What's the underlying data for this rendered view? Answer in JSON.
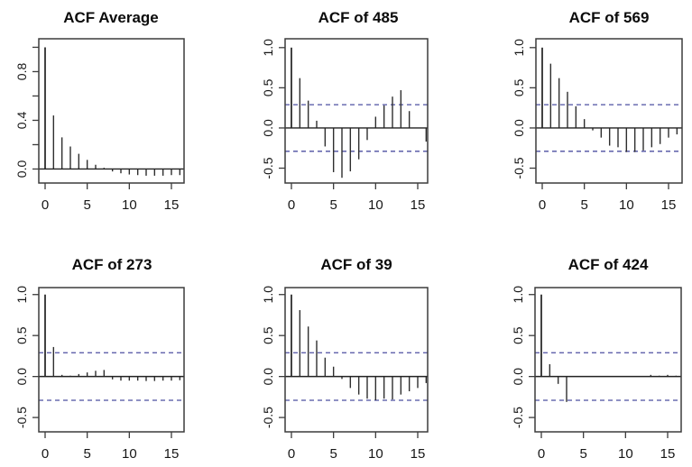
{
  "figure": {
    "description": "Grid of six autocorrelation (ACF) stem plots, R-style, 2 rows x 3 columns",
    "background": "#ffffff"
  },
  "colors": {
    "stem": "#2e2e2e",
    "axis": "#3c3c3c",
    "zero_line": "#222222",
    "conf_band": "#4c4fa1",
    "text": "#161616",
    "title": "#0b0b0b"
  },
  "chart_data": [
    {
      "type": "bar",
      "subtype": "acf-stem",
      "title": "ACF Average",
      "xlabel": "",
      "ylabel": "",
      "x": [
        0,
        1,
        2,
        3,
        4,
        5,
        6,
        7,
        8,
        9,
        10,
        11,
        12,
        13,
        14,
        15,
        16
      ],
      "values": [
        1.0,
        0.44,
        0.26,
        0.185,
        0.125,
        0.075,
        0.035,
        0.01,
        -0.02,
        -0.035,
        -0.045,
        -0.05,
        -0.055,
        -0.055,
        -0.055,
        -0.05,
        -0.05
      ],
      "ylim": [
        -0.115,
        1.07
      ],
      "ytick_values": [
        0.0,
        0.2,
        0.4,
        0.6,
        0.8,
        1.0
      ],
      "ytick_labels": [
        "0.0",
        "",
        "0.4",
        "",
        "0.8",
        ""
      ],
      "xtick_values": [
        0,
        5,
        10,
        15
      ],
      "xtick_labels": [
        "0",
        "5",
        "10",
        "15"
      ],
      "conf_band": null,
      "grid": false,
      "legend": null
    },
    {
      "type": "bar",
      "subtype": "acf-stem",
      "title": "ACF of 485",
      "xlabel": "",
      "ylabel": "",
      "x": [
        0,
        1,
        2,
        3,
        4,
        5,
        6,
        7,
        8,
        9,
        10,
        11,
        12,
        13,
        14,
        15,
        16
      ],
      "values": [
        1.0,
        0.62,
        0.34,
        0.09,
        -0.23,
        -0.55,
        -0.62,
        -0.54,
        -0.39,
        -0.15,
        0.14,
        0.28,
        0.39,
        0.47,
        0.21,
        0.0,
        -0.17
      ],
      "ylim": [
        -0.685,
        1.11
      ],
      "ytick_values": [
        -0.5,
        0.0,
        0.5,
        1.0
      ],
      "ytick_labels": [
        "-0.5",
        "0.0",
        "0.5",
        "1.0"
      ],
      "xtick_values": [
        0,
        5,
        10,
        15
      ],
      "xtick_labels": [
        "0",
        "5",
        "10",
        "15"
      ],
      "conf_band": 0.29,
      "grid": false,
      "legend": null
    },
    {
      "type": "bar",
      "subtype": "acf-stem",
      "title": "ACF of 569",
      "xlabel": "",
      "ylabel": "",
      "x": [
        0,
        1,
        2,
        3,
        4,
        5,
        6,
        7,
        8,
        9,
        10,
        11,
        12,
        13,
        14,
        15,
        16
      ],
      "values": [
        1.0,
        0.8,
        0.62,
        0.45,
        0.27,
        0.11,
        -0.03,
        -0.12,
        -0.22,
        -0.24,
        -0.3,
        -0.3,
        -0.28,
        -0.24,
        -0.2,
        -0.12,
        -0.08
      ],
      "ylim": [
        -0.685,
        1.11
      ],
      "ytick_values": [
        -0.5,
        0.0,
        0.5,
        1.0
      ],
      "ytick_labels": [
        "-0.5",
        "0.0",
        "0.5",
        "1.0"
      ],
      "xtick_values": [
        0,
        5,
        10,
        15
      ],
      "xtick_labels": [
        "0",
        "5",
        "10",
        "15"
      ],
      "conf_band": 0.29,
      "grid": false,
      "legend": null
    },
    {
      "type": "bar",
      "subtype": "acf-stem",
      "title": "ACF of 273",
      "xlabel": "",
      "ylabel": "",
      "x": [
        0,
        1,
        2,
        3,
        4,
        5,
        6,
        7,
        8,
        9,
        10,
        11,
        12,
        13,
        14,
        15,
        16
      ],
      "values": [
        1.0,
        0.36,
        0.02,
        0.01,
        0.03,
        0.05,
        0.07,
        0.08,
        -0.035,
        -0.05,
        -0.05,
        -0.05,
        -0.055,
        -0.055,
        -0.05,
        -0.05,
        -0.045
      ],
      "ylim": [
        -0.675,
        1.085
      ],
      "ytick_values": [
        -0.5,
        0.0,
        0.5,
        1.0
      ],
      "ytick_labels": [
        "-0.5",
        "0.0",
        "0.5",
        "1.0"
      ],
      "xtick_values": [
        0,
        5,
        10,
        15
      ],
      "xtick_labels": [
        "0",
        "5",
        "10",
        "15"
      ],
      "conf_band": 0.29,
      "grid": false,
      "legend": null
    },
    {
      "type": "bar",
      "subtype": "acf-stem",
      "title": "ACF of 39",
      "xlabel": "",
      "ylabel": "",
      "x": [
        0,
        1,
        2,
        3,
        4,
        5,
        6,
        7,
        8,
        9,
        10,
        11,
        12,
        13,
        14,
        15,
        16
      ],
      "values": [
        1.0,
        0.81,
        0.61,
        0.44,
        0.23,
        0.12,
        -0.03,
        -0.14,
        -0.22,
        -0.27,
        -0.29,
        -0.27,
        -0.28,
        -0.22,
        -0.18,
        -0.14,
        -0.08
      ],
      "ylim": [
        -0.675,
        1.085
      ],
      "ytick_values": [
        -0.5,
        0.0,
        0.5,
        1.0
      ],
      "ytick_labels": [
        "-0.5",
        "0.0",
        "0.5",
        "1.0"
      ],
      "xtick_values": [
        0,
        5,
        10,
        15
      ],
      "xtick_labels": [
        "0",
        "5",
        "10",
        "15"
      ],
      "conf_band": 0.29,
      "grid": false,
      "legend": null
    },
    {
      "type": "bar",
      "subtype": "acf-stem",
      "title": "ACF of 424",
      "xlabel": "",
      "ylabel": "",
      "x": [
        0,
        1,
        2,
        3,
        4,
        5,
        6,
        7,
        8,
        9,
        10,
        11,
        12,
        13,
        14,
        15,
        16
      ],
      "values": [
        1.0,
        0.15,
        -0.09,
        -0.31,
        0.0,
        0.0,
        0.0,
        0.0,
        0.0,
        0.0,
        0.0,
        0.0,
        0.0,
        0.02,
        0.01,
        0.02,
        0.01
      ],
      "ylim": [
        -0.675,
        1.085
      ],
      "ytick_values": [
        -0.5,
        0.0,
        0.5,
        1.0
      ],
      "ytick_labels": [
        "-0.5",
        "0.0",
        "0.5",
        "1.0"
      ],
      "xtick_values": [
        0,
        5,
        10,
        15
      ],
      "xtick_labels": [
        "0",
        "5",
        "10",
        "15"
      ],
      "conf_band": 0.29,
      "grid": false,
      "legend": null
    }
  ]
}
